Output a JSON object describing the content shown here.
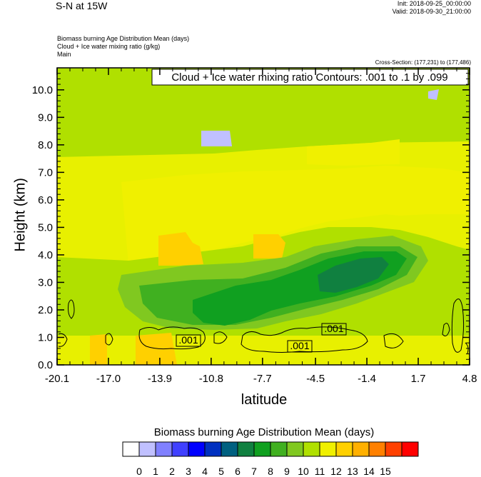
{
  "header": {
    "title": "S-N at 15W",
    "init": "Init: 2018-09-25_00:00:00",
    "valid": "Valid: 2018-09-30_21:00:00",
    "fields": [
      "Biomass burning Age Distribution Mean   (days)",
      "Cloud + Ice water mixing ratio   (g/kg)",
      "Main"
    ],
    "cross_section": "Cross-Section: (177,231) to (177,486)"
  },
  "chart_data": {
    "type": "heatmap",
    "xlabel": "latitude",
    "ylabel": "Height (km)",
    "x_ticks": [
      "-20.1",
      "-17.0",
      "-13.9",
      "-10.8",
      "-7.7",
      "-4.5",
      "-1.4",
      "1.7",
      "4.8"
    ],
    "y_ticks": [
      "0.0",
      "1.0",
      "2.0",
      "3.0",
      "4.0",
      "5.0",
      "6.0",
      "7.0",
      "8.0",
      "9.0",
      "10.0"
    ],
    "xlim": [
      -20.1,
      4.8
    ],
    "ylim": [
      0,
      10.8
    ],
    "contour_legend": "Cloud + Ice water mixing ratio Contours: .001 to .1 by .099",
    "contour_labels": [
      ".001",
      ".001",
      ".001"
    ],
    "colorbar": {
      "title": "Biomass burning Age Distribution Mean  (days)",
      "levels": [
        "0",
        "1",
        "2",
        "3",
        "4",
        "5",
        "6",
        "7",
        "8",
        "9",
        "10",
        "11",
        "12",
        "13",
        "14",
        "15"
      ],
      "colors": [
        "#ffffff",
        "#c0c0ff",
        "#8080ff",
        "#4040ff",
        "#0000ff",
        "#0030c0",
        "#006080",
        "#108040",
        "#10a020",
        "#40b020",
        "#80c820",
        "#b0e000",
        "#f0f000",
        "#ffd000",
        "#ffb000",
        "#ff8000",
        "#ff4000",
        "#ff0000"
      ]
    }
  }
}
